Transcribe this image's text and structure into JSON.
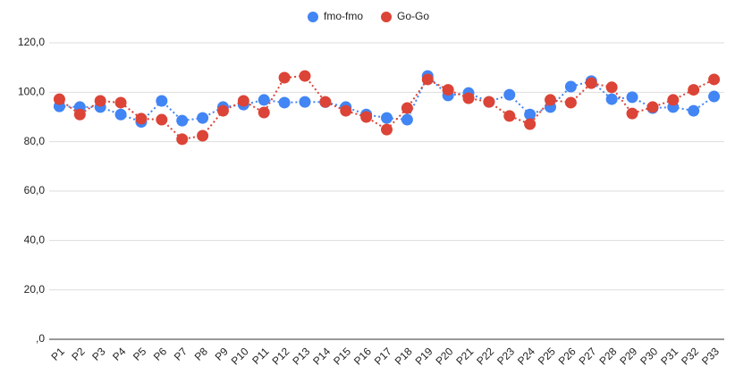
{
  "chart_data": {
    "type": "line",
    "categories": [
      "P1",
      "P2",
      "P3",
      "P4",
      "P5",
      "P6",
      "P7",
      "P8",
      "P9",
      "P10",
      "P11",
      "P12",
      "P13",
      "P14",
      "P15",
      "P16",
      "P17",
      "P18",
      "P19",
      "P20",
      "P21",
      "P22",
      "P23",
      "P24",
      "P25",
      "P26",
      "P27",
      "P28",
      "P29",
      "P30",
      "P31",
      "P32",
      "P33"
    ],
    "series": [
      {
        "name": "fmo-fmo",
        "color": "#4285f4",
        "values": [
          94.3,
          94,
          94,
          91,
          88,
          96.5,
          88.5,
          89.6,
          94,
          95,
          96.9,
          95.8,
          96.1,
          96,
          94,
          91,
          89.6,
          88.9,
          106.6,
          98.7,
          99.7,
          96.1,
          99,
          91,
          94,
          102.3,
          104.5,
          97.2,
          98,
          93.6,
          94,
          92.5,
          98.3
        ]
      },
      {
        "name": "Go-Go",
        "color": "#db4437",
        "values": [
          97.2,
          91,
          96.5,
          95.8,
          89.3,
          88.9,
          81,
          82.4,
          92.5,
          96.5,
          91.8,
          105.9,
          106.6,
          96.1,
          92.5,
          90,
          84.9,
          93.6,
          105.2,
          101,
          97.6,
          96.1,
          90.4,
          87.1,
          96.9,
          95.8,
          103.7,
          102,
          91.4,
          94,
          96.9,
          101,
          105.2
        ]
      }
    ],
    "ylim": [
      0,
      120
    ],
    "yticks": [
      {
        "value": 0,
        "label": ",0"
      },
      {
        "value": 20,
        "label": "20,0"
      },
      {
        "value": 40,
        "label": "40,0"
      },
      {
        "value": 60,
        "label": "60,0"
      },
      {
        "value": 80,
        "label": "80,0"
      },
      {
        "value": 100,
        "label": "100,0"
      },
      {
        "value": 120,
        "label": "120,0"
      }
    ],
    "grid": true,
    "legend": "top"
  }
}
